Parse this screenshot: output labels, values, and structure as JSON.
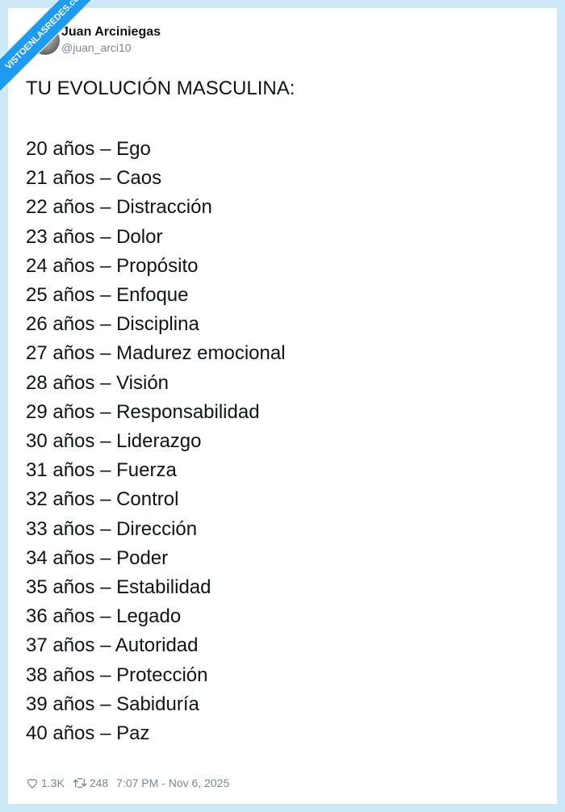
{
  "watermark": "VISTOENLASREDES.com",
  "author": {
    "name": "Juan Arciniegas",
    "handle": "@juan_arci10"
  },
  "post": {
    "title": "TU EVOLUCIÓN MASCULINA:",
    "lines": [
      "20 años – Ego",
      "21 años – Caos",
      "22 años – Distracción",
      "23 años – Dolor",
      "24 años – Propósito",
      "25 años – Enfoque",
      "26 años – Disciplina",
      "27 años – Madurez emocional",
      "28 años – Visión",
      "29 años – Responsabilidad",
      "30 años – Liderazgo",
      "31 años – Fuerza",
      "32 años – Control",
      "33 años – Dirección",
      "34 años – Poder",
      "35 años – Estabilidad",
      "36 años – Legado",
      "37 años – Autoridad",
      "38 años – Protección",
      "39 años – Sabiduría",
      "40 años – Paz"
    ]
  },
  "footer": {
    "likes": "1.3K",
    "retweets": "248",
    "timestamp": "7:07 PM - Nov 6, 2025"
  }
}
